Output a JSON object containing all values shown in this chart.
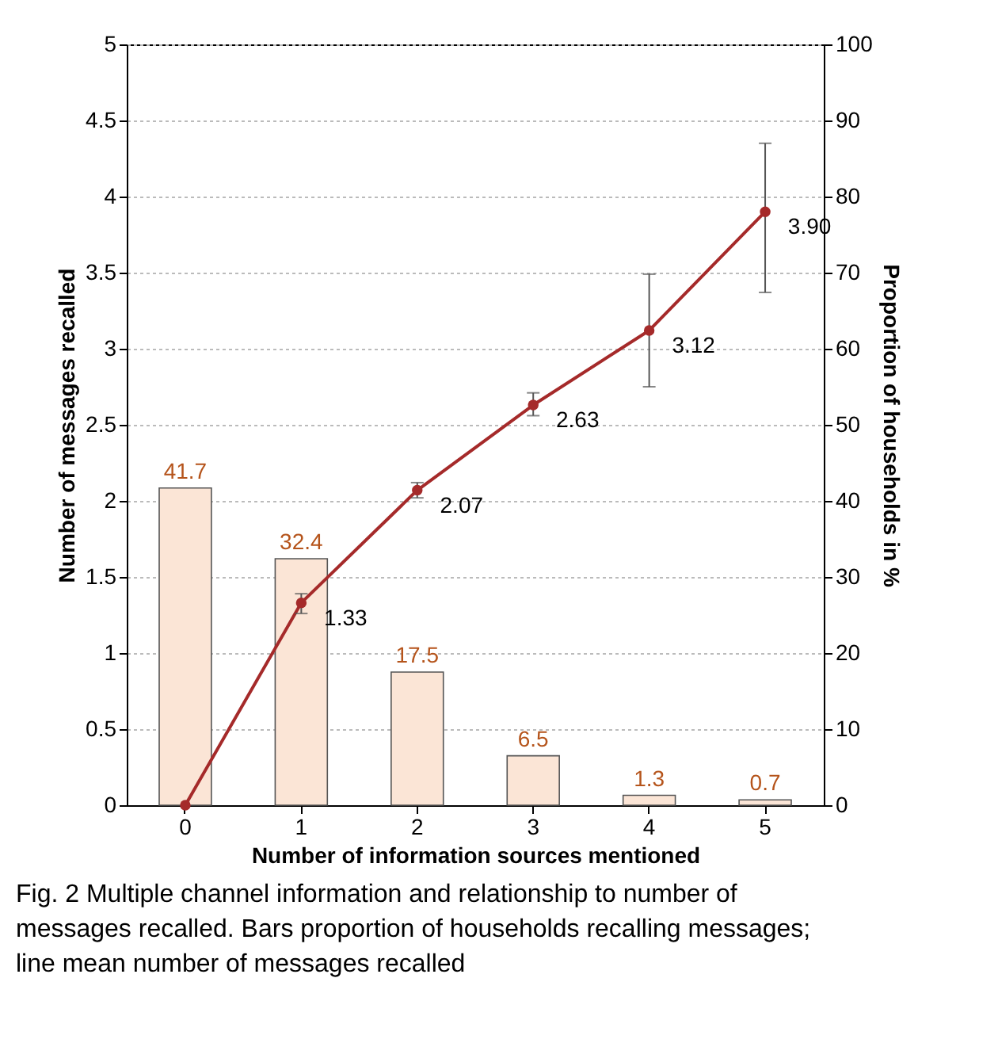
{
  "chart_data": {
    "type": "bar",
    "xlabel": "Number of information sources mentioned",
    "ylabel": "Number of messages recalled",
    "y2label": "Proportion of households in %",
    "categories": [
      "0",
      "1",
      "2",
      "3",
      "4",
      "5"
    ],
    "series": [
      {
        "axis": "y2",
        "color": "#fbe5d6",
        "values": [
          41.7,
          32.4,
          17.5,
          6.5,
          1.3,
          0.7
        ],
        "value_labels": [
          "41.7",
          "32.4",
          "17.5",
          "6.5",
          "1.3",
          "0.7"
        ]
      },
      {
        "type": "line",
        "axis": "y",
        "color": "#a52a2a",
        "values": [
          0,
          1.33,
          2.07,
          2.63,
          3.12,
          3.9
        ],
        "value_labels": [
          null,
          "1.33",
          "2.07",
          "2.63",
          "3.12",
          "3.90"
        ],
        "errors": [
          null,
          [
            1.26,
            1.39
          ],
          [
            2.02,
            2.12
          ],
          [
            2.56,
            2.71
          ],
          [
            2.75,
            3.49
          ],
          [
            3.37,
            4.35
          ]
        ]
      }
    ],
    "marker": "circle",
    "grid": "y",
    "ylim": [
      0,
      5
    ],
    "yticks": [
      0,
      0.5,
      1,
      1.5,
      2,
      2.5,
      3,
      3.5,
      4,
      4.5,
      5
    ],
    "y2lim": [
      0,
      100
    ],
    "y2ticks": [
      0,
      10,
      20,
      30,
      40,
      50,
      60,
      70,
      80,
      90,
      100
    ],
    "annotations": [
      "Fig. 2 Multiple channel information and relationship to number of messages recalled. Bars proportion of households recalling messages; line mean number of messages recalled"
    ]
  }
}
